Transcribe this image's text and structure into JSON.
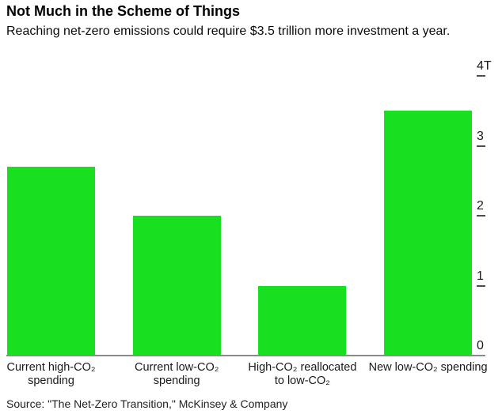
{
  "chart_data": {
    "type": "bar",
    "title": "Not Much in the Scheme of Things",
    "subtitle": "Reaching net-zero emissions could require $3.5 trillion more investment a year.",
    "source": "Source: \"The Net-Zero Transition,\" McKinsey & Company",
    "categories": [
      "Current high-CO₂ spending",
      "Current low-CO₂ spending",
      "High-CO₂ reallocated to low-CO₂",
      "New low-CO₂ spending"
    ],
    "category_label_lines": [
      [
        "Current high-CO₂",
        "spending"
      ],
      [
        "Current low-CO₂",
        "spending"
      ],
      [
        "High-CO₂ reallocated",
        "to low-CO₂"
      ],
      [
        "New low-CO₂ spending"
      ]
    ],
    "values": [
      2.7,
      2.0,
      1.0,
      3.5
    ],
    "yticks": [
      {
        "value": 4,
        "label": "4T"
      },
      {
        "value": 3,
        "label": "3"
      },
      {
        "value": 2,
        "label": "2"
      },
      {
        "value": 1,
        "label": "1"
      },
      {
        "value": 0,
        "label": "0"
      }
    ],
    "ylim": [
      0,
      4
    ],
    "yaxis_unit_suffix": "T",
    "axis_side": "right",
    "grid": false,
    "legend": "none",
    "bar_color": "#18e021",
    "axis_line_color": "#8a8a8a",
    "tick_color": "#4d4d4d",
    "text_color": "#1a1a1a"
  }
}
